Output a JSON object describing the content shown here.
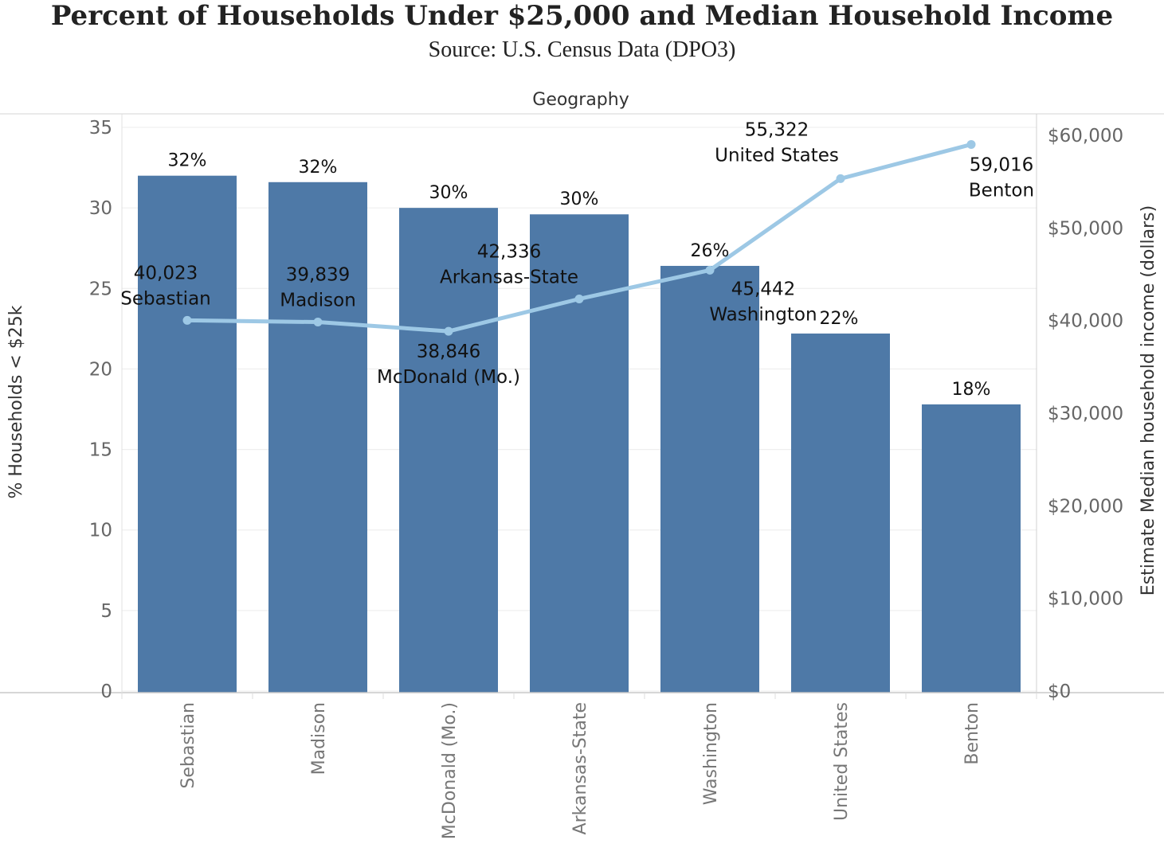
{
  "title": "Percent of Households Under $25,000 and Median Household Income",
  "subtitle": "Source: U.S. Census Data (DPO3)",
  "chart_data": {
    "type": "bar",
    "xlabel": "Geography",
    "ylabel": "% Households < $25k",
    "y2label": "Estimate Median household income (dollars)",
    "ylim": [
      0,
      35
    ],
    "y2lim": [
      0,
      60000
    ],
    "yticks": [
      "0",
      "5",
      "10",
      "15",
      "20",
      "25",
      "30",
      "35"
    ],
    "y2ticks": [
      "$0",
      "$10,000",
      "$20,000",
      "$30,000",
      "$40,000",
      "$50,000",
      "$60,000"
    ],
    "categories": [
      "Sebastian",
      "Madison",
      "McDonald (Mo.)",
      "Arkansas-State",
      "Washington",
      "United States",
      "Benton"
    ],
    "bars": {
      "values": [
        32,
        31.6,
        30,
        29.6,
        26.4,
        22.2,
        17.8
      ],
      "labels": [
        "32%",
        "32%",
        "30%",
        "30%",
        "26%",
        "22%",
        "18%"
      ],
      "color": "#4e79a7"
    },
    "line": {
      "values": [
        40023,
        39839,
        38846,
        42336,
        45442,
        55322,
        59016
      ],
      "value_labels": [
        "40,023",
        "39,839",
        "38,846",
        "42,336",
        "45,442",
        "55,322",
        "59,016"
      ],
      "name_labels": [
        "Sebastian",
        "Madison",
        "McDonald (Mo.)",
        "Arkansas-State",
        "Washington",
        "United States",
        "Benton"
      ],
      "color": "#9dc8e5"
    },
    "grid": true
  }
}
